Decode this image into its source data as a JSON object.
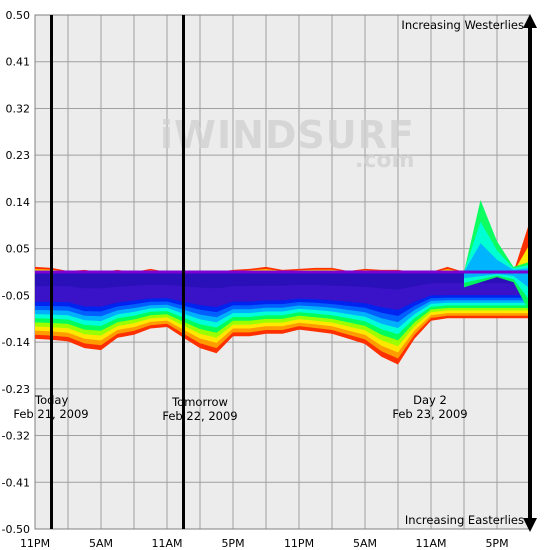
{
  "chart_data": {
    "type": "area",
    "ylim": [
      -0.5,
      0.5
    ],
    "yticks": [
      "0.50",
      "0.41",
      "0.32",
      "0.23",
      "0.14",
      "0.05",
      "-0.05",
      "-0.14",
      "-0.23",
      "-0.32",
      "-0.41",
      "-0.50"
    ],
    "xticks": [
      "11PM",
      "5AM",
      "11AM",
      "5PM",
      "11PM",
      "5AM",
      "11AM",
      "5PM"
    ],
    "grid": true,
    "days": [
      {
        "name": "Today",
        "date": "Feb 21, 2009"
      },
      {
        "name": "Tomorrow",
        "date": "Feb 22, 2009"
      },
      {
        "name": "Day 2",
        "date": "Feb 23, 2009"
      }
    ],
    "top_label": "Increasing Westerlies",
    "bottom_label": "Increasing Easterlies",
    "watermark": {
      "main": "iWINDSURF",
      "sub": ".com"
    },
    "x_hours": [
      0,
      3,
      6,
      9,
      12,
      15,
      18,
      21,
      24,
      27,
      30,
      33,
      36,
      39,
      42,
      45,
      48,
      51,
      54,
      57,
      60,
      63,
      66,
      69,
      72,
      75,
      78,
      81,
      84,
      87,
      90
    ],
    "day_boundaries_hours": [
      3,
      27
    ],
    "colors": {
      "background": "#ececec",
      "grid": "#a0a0a0",
      "baseline": "#7b00d4",
      "bands": [
        "#ff3000",
        "#ff9c00",
        "#ffe800",
        "#9cff00",
        "#00ff5a",
        "#00ffd8",
        "#00b0ff",
        "#0060ff",
        "#0024f0",
        "#3a12c8"
      ]
    },
    "series_upper_envelope": [
      0.01,
      0.008,
      0.002,
      0.004,
      0.0,
      0.004,
      0.0,
      0.006,
      0.0,
      0.0,
      0.002,
      0.0,
      0.004,
      0.006,
      0.01,
      0.004,
      0.006,
      0.008,
      0.008,
      0.002,
      0.006,
      0.004,
      0.004,
      0.0,
      0.0,
      0.01,
      0.0,
      0.0,
      0.0,
      0.0,
      0.1
    ],
    "series_lower_envelope": [
      -0.13,
      -0.132,
      -0.135,
      -0.148,
      -0.152,
      -0.128,
      -0.122,
      -0.11,
      -0.107,
      -0.128,
      -0.148,
      -0.158,
      -0.125,
      -0.125,
      -0.12,
      -0.12,
      -0.112,
      -0.116,
      -0.12,
      -0.13,
      -0.14,
      -0.165,
      -0.18,
      -0.13,
      -0.095,
      -0.09,
      -0.09,
      -0.09,
      -0.09,
      -0.09,
      -0.09
    ],
    "core_lower": [
      -0.05,
      -0.05,
      -0.05,
      -0.058,
      -0.058,
      -0.052,
      -0.048,
      -0.045,
      -0.045,
      -0.05,
      -0.055,
      -0.058,
      -0.05,
      -0.05,
      -0.048,
      -0.048,
      -0.045,
      -0.046,
      -0.048,
      -0.05,
      -0.052,
      -0.058,
      -0.062,
      -0.05,
      -0.04,
      -0.04,
      -0.04,
      -0.04,
      -0.04,
      -0.04,
      -0.04
    ],
    "spike": {
      "hours": [
        78,
        81,
        84,
        87,
        90
      ],
      "upper": [
        0.0,
        0.14,
        0.06,
        0.01,
        0.02
      ],
      "lower": [
        -0.03,
        -0.02,
        -0.01,
        -0.02,
        -0.08
      ]
    }
  }
}
